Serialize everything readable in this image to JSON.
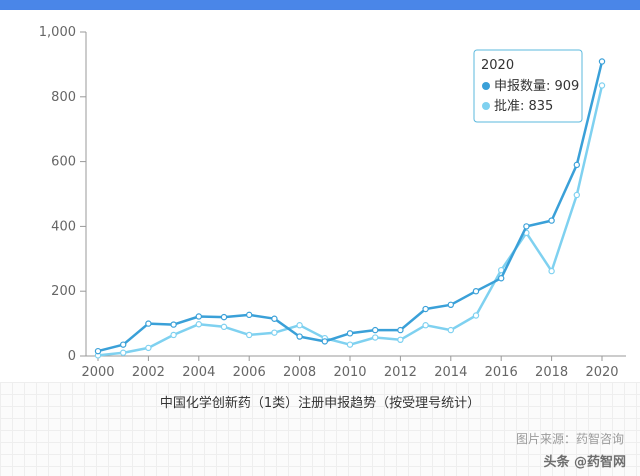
{
  "chart_data": {
    "type": "line",
    "title": "",
    "xlabel": "",
    "ylabel": "",
    "x": [
      2000,
      2001,
      2002,
      2003,
      2004,
      2005,
      2006,
      2007,
      2008,
      2009,
      2010,
      2011,
      2012,
      2013,
      2014,
      2015,
      2016,
      2017,
      2018,
      2019,
      2020
    ],
    "x_ticks": [
      "2000",
      "2002",
      "2004",
      "2006",
      "2008",
      "2010",
      "2012",
      "2014",
      "2016",
      "2018",
      "2020"
    ],
    "y_ticks": [
      "0",
      "200",
      "400",
      "600",
      "800",
      "1,000"
    ],
    "ylim": [
      0,
      1000
    ],
    "xlim": [
      2000,
      2020
    ],
    "grid": false,
    "series": [
      {
        "name": "申报数量",
        "color": "#3aa0d8",
        "values": [
          15,
          35,
          100,
          97,
          122,
          120,
          127,
          115,
          60,
          45,
          70,
          80,
          80,
          145,
          158,
          200,
          240,
          400,
          418,
          590,
          909
        ]
      },
      {
        "name": "批准",
        "color": "#7fd1f0",
        "values": [
          2,
          10,
          25,
          65,
          98,
          90,
          65,
          72,
          95,
          55,
          35,
          57,
          50,
          95,
          80,
          125,
          265,
          380,
          262,
          497,
          835
        ]
      }
    ],
    "tooltip": {
      "title": "2020",
      "rows": [
        {
          "label": "申报数量: 909",
          "color": "#3aa0d8"
        },
        {
          "label": "批准: 835",
          "color": "#7fd1f0"
        }
      ]
    }
  },
  "caption": "中国化学创新药（1类）注册申报趋势（按受理号统计）",
  "image_source": "图片来源：药智咨询",
  "watermark": "头条 @药智网"
}
